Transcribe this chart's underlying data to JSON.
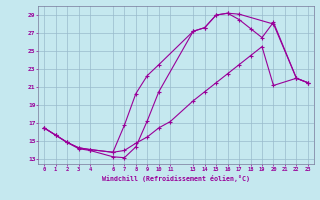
{
  "bg_color": "#c5e8ef",
  "line_color": "#990099",
  "grid_color": "#99bbcc",
  "xlim": [
    -0.5,
    23.5
  ],
  "ylim": [
    12.5,
    30
  ],
  "xticks": [
    0,
    1,
    2,
    3,
    4,
    6,
    7,
    8,
    9,
    10,
    11,
    13,
    14,
    15,
    16,
    17,
    18,
    19,
    20,
    21,
    22,
    23
  ],
  "yticks": [
    13,
    15,
    17,
    19,
    21,
    23,
    25,
    27,
    29
  ],
  "xlabel": "Windchill (Refroidissement éolien,°C)",
  "curve1_x": [
    0,
    1,
    2,
    3,
    4,
    6,
    7,
    8,
    9,
    10,
    13,
    14,
    15,
    16,
    17,
    20,
    22,
    23
  ],
  "curve1_y": [
    16.5,
    15.7,
    14.9,
    14.2,
    14.0,
    13.3,
    13.2,
    14.4,
    17.3,
    20.5,
    27.2,
    27.6,
    29.0,
    29.2,
    29.1,
    28.0,
    22.0,
    21.5
  ],
  "curve2_x": [
    0,
    1,
    2,
    3,
    4,
    6,
    7,
    8,
    9,
    10,
    13,
    14,
    15,
    16,
    17,
    18,
    19,
    20,
    22,
    23
  ],
  "curve2_y": [
    16.5,
    15.7,
    14.9,
    14.3,
    14.1,
    13.8,
    16.8,
    20.3,
    22.3,
    23.5,
    27.2,
    27.6,
    29.0,
    29.2,
    28.5,
    27.5,
    26.5,
    28.2,
    22.0,
    21.5
  ],
  "curve3_x": [
    0,
    1,
    2,
    3,
    4,
    6,
    7,
    8,
    9,
    10,
    11,
    13,
    14,
    15,
    16,
    17,
    18,
    19,
    20,
    22,
    23
  ],
  "curve3_y": [
    16.5,
    15.7,
    14.9,
    14.3,
    14.1,
    13.8,
    14.0,
    14.8,
    15.5,
    16.5,
    17.2,
    19.5,
    20.5,
    21.5,
    22.5,
    23.5,
    24.5,
    25.5,
    21.2,
    22.0,
    21.5
  ]
}
